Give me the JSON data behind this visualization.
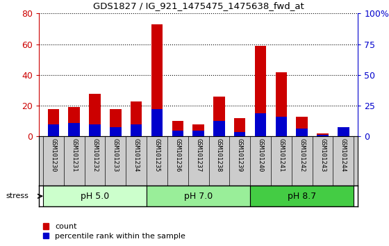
{
  "title": "GDS1827 / IG_921_1475475_1475638_fwd_at",
  "samples": [
    "GSM101230",
    "GSM101231",
    "GSM101232",
    "GSM101233",
    "GSM101234",
    "GSM101235",
    "GSM101236",
    "GSM101237",
    "GSM101238",
    "GSM101239",
    "GSM101240",
    "GSM101241",
    "GSM101242",
    "GSM101243",
    "GSM101244"
  ],
  "count_values": [
    18,
    19,
    28,
    18,
    23,
    73,
    10,
    8,
    26,
    12,
    59,
    42,
    13,
    2,
    4
  ],
  "percentile_values": [
    8,
    9,
    8,
    6,
    8,
    18,
    4,
    4,
    10,
    3,
    15,
    13,
    5,
    1,
    6
  ],
  "groups": [
    {
      "label": "pH 5.0",
      "start": 0,
      "end": 5,
      "color": "#ccffcc"
    },
    {
      "label": "pH 7.0",
      "start": 5,
      "end": 10,
      "color": "#99ee99"
    },
    {
      "label": "pH 8.7",
      "start": 10,
      "end": 15,
      "color": "#44cc44"
    }
  ],
  "stress_label": "stress",
  "ylim_left": [
    0,
    80
  ],
  "ylim_right": [
    0,
    100
  ],
  "yticks_left": [
    0,
    20,
    40,
    60,
    80
  ],
  "yticks_right": [
    0,
    25,
    50,
    75,
    100
  ],
  "yticklabels_right": [
    "0",
    "25",
    "50",
    "75",
    "100%"
  ],
  "bar_color_red": "#cc0000",
  "bar_color_blue": "#0000cc",
  "bar_width": 0.55,
  "bg_color": "#cccccc",
  "plot_bg": "#ffffff",
  "legend_items": [
    "count",
    "percentile rank within the sample"
  ],
  "legend_colors": [
    "#cc0000",
    "#0000cc"
  ]
}
